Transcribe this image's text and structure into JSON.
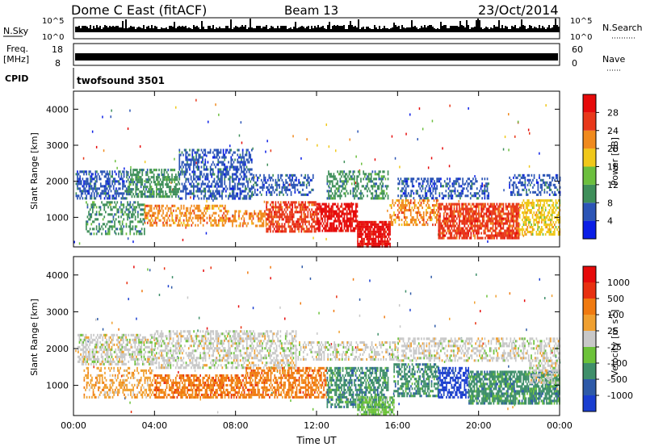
{
  "header": {
    "station": "Dome C East (fitACF)",
    "beam": "Beam 13",
    "date": "23/Oct/2014"
  },
  "status_panels": {
    "nsky_label": "N.Sky",
    "nsky_ticks": [
      "10^5",
      "10^0"
    ],
    "nsearch_label": "N.Search",
    "freq_label_1": "Freq.",
    "freq_label_2": "[MHz]",
    "freq_ticks": [
      "18",
      "8"
    ],
    "nave_label": "Nave",
    "nave_ticks": [
      "60",
      "0"
    ],
    "cpid_label": "CPID",
    "cpid_value": "twofsound 3501"
  },
  "chart_data": [
    {
      "type": "heatmap",
      "name": "power",
      "xlabel": "Time UT",
      "ylabel": "Slant Range [km]",
      "x_ticks": [
        "00:00",
        "04:00",
        "08:00",
        "12:00",
        "16:00",
        "20:00",
        "00:00"
      ],
      "xlim": [
        0,
        24
      ],
      "ylim": [
        180,
        4500
      ],
      "y_ticks": [
        1000,
        2000,
        3000,
        4000
      ],
      "colorbar": {
        "label": "Power [dB]",
        "levels": [
          "4",
          "8",
          "12",
          "16",
          "20",
          "24",
          "28"
        ],
        "colors": [
          "#0a1ee6",
          "#2c55b6",
          "#3f8f5a",
          "#6cbf3e",
          "#f0c81a",
          "#f08a1e",
          "#e8381a",
          "#e60a0a"
        ]
      },
      "patches": [
        {
          "t": [
            0.1,
            2.6
          ],
          "r": [
            1500,
            2300
          ],
          "level": 1,
          "density": 0.55
        },
        {
          "t": [
            2.6,
            5.2
          ],
          "r": [
            1550,
            2350
          ],
          "level": 2,
          "density": 0.6
        },
        {
          "t": [
            5.2,
            8.8
          ],
          "r": [
            1500,
            2900
          ],
          "level": 1,
          "density": 0.5
        },
        {
          "t": [
            8.8,
            11.8
          ],
          "r": [
            1600,
            2200
          ],
          "level": 1,
          "density": 0.45
        },
        {
          "t": [
            12.5,
            15.5
          ],
          "r": [
            1500,
            2300
          ],
          "level": 2,
          "density": 0.45
        },
        {
          "t": [
            16.0,
            20.5
          ],
          "r": [
            1500,
            2100
          ],
          "level": 1,
          "density": 0.4
        },
        {
          "t": [
            21.5,
            24.0
          ],
          "r": [
            1600,
            2200
          ],
          "level": 1,
          "density": 0.45
        },
        {
          "t": [
            0.6,
            3.5
          ],
          "r": [
            550,
            1450
          ],
          "level": 2,
          "density": 0.4
        },
        {
          "t": [
            3.5,
            7.5
          ],
          "r": [
            800,
            1350
          ],
          "level": 5,
          "density": 0.5
        },
        {
          "t": [
            7.5,
            9.5
          ],
          "r": [
            750,
            1200
          ],
          "level": 5,
          "density": 0.45
        },
        {
          "t": [
            9.5,
            12.0
          ],
          "r": [
            600,
            1450
          ],
          "level": 6,
          "density": 0.65
        },
        {
          "t": [
            12.0,
            14.0
          ],
          "r": [
            600,
            1400
          ],
          "level": 7,
          "density": 0.7
        },
        {
          "t": [
            14.0,
            15.6
          ],
          "r": [
            200,
            900
          ],
          "level": 7,
          "density": 0.85
        },
        {
          "t": [
            15.6,
            18.0
          ],
          "r": [
            800,
            1500
          ],
          "level": 5,
          "density": 0.5
        },
        {
          "t": [
            18.0,
            22.0
          ],
          "r": [
            400,
            1400
          ],
          "level": 6,
          "density": 0.75
        },
        {
          "t": [
            22.0,
            24.0
          ],
          "r": [
            500,
            1500
          ],
          "level": 4,
          "density": 0.55
        }
      ]
    },
    {
      "type": "heatmap",
      "name": "velocity",
      "xlabel": "Time UT",
      "ylabel": "Slant Range [km]",
      "x_ticks": [
        "00:00",
        "04:00",
        "08:00",
        "12:00",
        "16:00",
        "20:00",
        "00:00"
      ],
      "xlim": [
        0,
        24
      ],
      "ylim": [
        180,
        4500
      ],
      "y_ticks": [
        1000,
        2000,
        3000,
        4000
      ],
      "colorbar": {
        "label": "Velocity [m s^-1]",
        "levels": [
          "1000",
          "500",
          "100",
          "25",
          "-25",
          "-100",
          "-500",
          "-1000"
        ],
        "colors": [
          "#1a3ed0",
          "#2e5aa8",
          "#3f8f6a",
          "#6cc23a",
          "#c8c8c8",
          "#f0a030",
          "#f07a10",
          "#e83010",
          "#e60a0a"
        ]
      },
      "patches": [
        {
          "t": [
            0.2,
            4.0
          ],
          "r": [
            1600,
            2400
          ],
          "level": 4,
          "density": 0.55
        },
        {
          "t": [
            4.0,
            11.0
          ],
          "r": [
            1500,
            2500
          ],
          "level": 4,
          "density": 0.5
        },
        {
          "t": [
            11.0,
            16.0
          ],
          "r": [
            1700,
            2200
          ],
          "level": 4,
          "density": 0.4
        },
        {
          "t": [
            16.0,
            24.0
          ],
          "r": [
            1700,
            2300
          ],
          "level": 4,
          "density": 0.45
        },
        {
          "t": [
            0.5,
            4.0
          ],
          "r": [
            700,
            1500
          ],
          "level": 5,
          "density": 0.4
        },
        {
          "t": [
            4.0,
            8.5
          ],
          "r": [
            700,
            1300
          ],
          "level": 6,
          "density": 0.65
        },
        {
          "t": [
            8.5,
            12.5
          ],
          "r": [
            700,
            1500
          ],
          "level": 6,
          "density": 0.6
        },
        {
          "t": [
            12.5,
            15.5
          ],
          "r": [
            400,
            1500
          ],
          "level": 2,
          "density": 0.6
        },
        {
          "t": [
            14.0,
            15.8
          ],
          "r": [
            200,
            700
          ],
          "level": 3,
          "density": 0.7
        },
        {
          "t": [
            15.8,
            18.0
          ],
          "r": [
            700,
            1600
          ],
          "level": 2,
          "density": 0.55
        },
        {
          "t": [
            18.0,
            19.5
          ],
          "r": [
            700,
            1500
          ],
          "level": 0,
          "density": 0.6
        },
        {
          "t": [
            19.5,
            24.0
          ],
          "r": [
            500,
            1400
          ],
          "level": 2,
          "density": 0.75
        },
        {
          "t": [
            22.5,
            24.0
          ],
          "r": [
            1100,
            1700
          ],
          "level": 4,
          "density": 0.55
        }
      ]
    }
  ]
}
